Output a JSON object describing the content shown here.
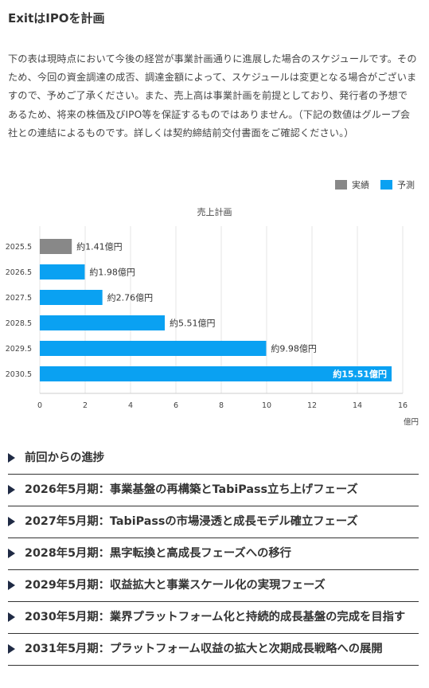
{
  "heading": "ExitはIPOを計画",
  "description": "下の表は現時点において今後の経営が事業計画通りに進展した場合のスケジュールです。そのため、今回の資金調達の成否、調達金額によって、スケジュールは変更となる場合がございますので、予めご了承ください。また、売上高は事業計画を前提としており、発行者の予想であるため、将来の株価及びIPO等を保証するものではありません。（下記の数値はグループ会社との連結によるものです。詳しくは契約締結前交付書面をご確認ください。）",
  "legend": {
    "actual_label": "実績",
    "forecast_label": "予測"
  },
  "colors": {
    "actual": "#888888",
    "forecast": "#0aa1f2",
    "triangle": "#1f2a44"
  },
  "chart_data": {
    "type": "bar",
    "orientation": "horizontal",
    "title": "売上計画",
    "unit_label": "億円",
    "categories": [
      "2025.5",
      "2026.5",
      "2027.5",
      "2028.5",
      "2029.5",
      "2030.5"
    ],
    "values": [
      1.41,
      1.98,
      2.76,
      5.51,
      9.98,
      15.51
    ],
    "kinds": [
      "actual",
      "forecast",
      "forecast",
      "forecast",
      "forecast",
      "forecast"
    ],
    "data_labels": [
      "約1.41億円",
      "約1.98億円",
      "約2.76億円",
      "約5.51億円",
      "約9.98億円",
      "約15.51億円"
    ],
    "xlim": [
      0,
      16
    ],
    "xticks": [
      "0",
      "2",
      "4",
      "6",
      "8",
      "10",
      "12",
      "14",
      "16"
    ],
    "grid": true
  },
  "accordion": [
    {
      "label": "前回からの進捗"
    },
    {
      "label": "2026年5月期：事業基盤の再構築とTabiPass立ち上げフェーズ"
    },
    {
      "label": "2027年5月期：TabiPassの市場浸透と成長モデル確立フェーズ"
    },
    {
      "label": "2028年5月期：黒字転換と高成長フェーズへの移行"
    },
    {
      "label": "2029年5月期：収益拡大と事業スケール化の実現フェーズ"
    },
    {
      "label": "2030年5月期：業界プラットフォーム化と持続的成長基盤の完成を目指す"
    },
    {
      "label": "2031年5月期：プラットフォーム収益の拡大と次期成長戦略への展開"
    }
  ]
}
